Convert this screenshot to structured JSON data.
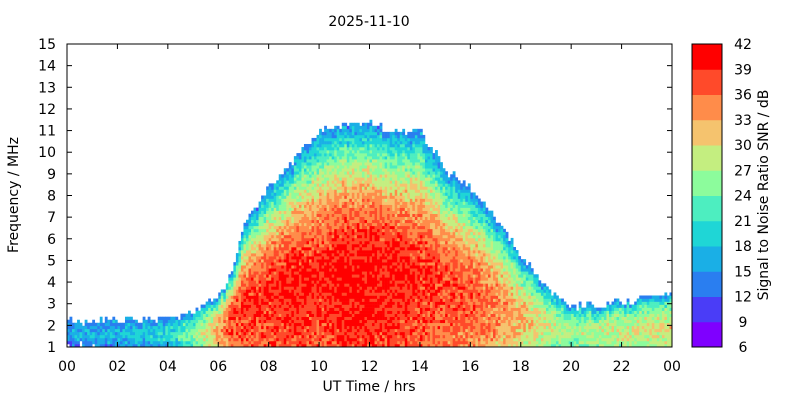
{
  "chart_data": {
    "type": "heatmap",
    "title": "2025-11-10",
    "xlabel": "UT Time / hrs",
    "ylabel": "Frequency / MHz",
    "colorbar_label": "Signal to Noise Ratio SNR / dB",
    "xlim": [
      0,
      24
    ],
    "ylim": [
      1,
      15
    ],
    "x_ticks": [
      "00",
      "02",
      "04",
      "06",
      "08",
      "10",
      "12",
      "14",
      "16",
      "18",
      "20",
      "22",
      "00"
    ],
    "y_ticks": [
      "1",
      "2",
      "3",
      "4",
      "5",
      "6",
      "7",
      "8",
      "9",
      "10",
      "11",
      "12",
      "13",
      "14",
      "15"
    ],
    "colorbar_range": [
      6,
      42
    ],
    "colorbar_ticks": [
      "6",
      "9",
      "12",
      "15",
      "18",
      "21",
      "24",
      "27",
      "30",
      "33",
      "36",
      "39",
      "42"
    ],
    "colorbar_colors": [
      "#7f00ff",
      "#4a3df7",
      "#2a7ef0",
      "#1aafe6",
      "#1fd6d6",
      "#4deec0",
      "#8cfc9c",
      "#c4ee80",
      "#f5c36e",
      "#ff8c4a",
      "#ff4a2a",
      "#ff0000"
    ],
    "envelope": {
      "description": "maximum observed frequency (MHz) of the SNR trace vs UT hour",
      "x": [
        0,
        2,
        4,
        5,
        6,
        6.5,
        7,
        8,
        9,
        10,
        11,
        12,
        13,
        14,
        15,
        16,
        17,
        18,
        19,
        20,
        22,
        24
      ],
      "upper": [
        2.1,
        2.2,
        2.2,
        2.5,
        3.3,
        4.2,
        6.5,
        8.3,
        9.6,
        10.9,
        11.2,
        11.3,
        10.9,
        10.9,
        9.2,
        8.3,
        6.9,
        5.2,
        3.7,
        2.8,
        3.0,
        3.4
      ],
      "peak_snr": [
        16,
        18,
        20,
        26,
        34,
        39,
        40,
        40,
        41,
        40,
        42,
        42,
        41,
        40,
        39,
        38,
        36,
        33,
        30,
        28,
        30,
        31
      ]
    }
  }
}
